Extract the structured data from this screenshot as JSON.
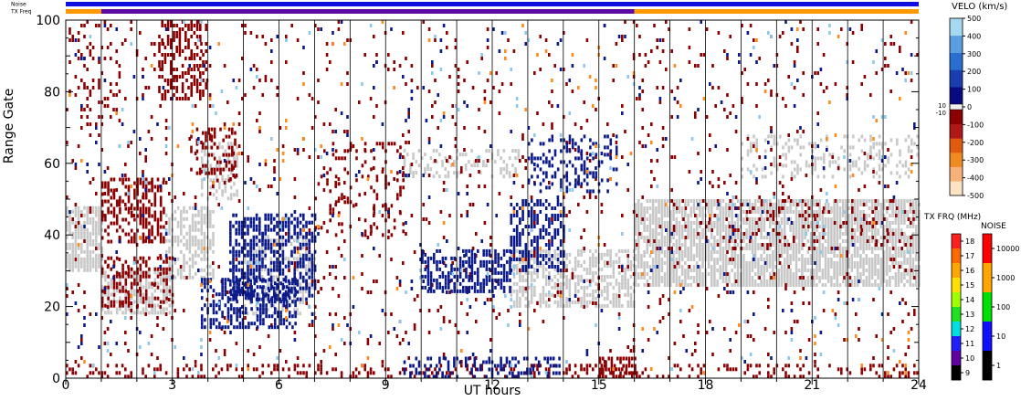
{
  "chart_data": {
    "type": "heatmap",
    "top_bars": [
      {
        "label": "Noise",
        "segments": [
          {
            "x0": 0,
            "x1": 24,
            "color": "#1010e0"
          }
        ]
      },
      {
        "label": "TX Freq",
        "segments": [
          {
            "x0": 0,
            "x1": 1,
            "color": "#ff9900"
          },
          {
            "x0": 1,
            "x1": 16,
            "color": "#5a0aa0"
          },
          {
            "x0": 16,
            "x1": 24,
            "color": "#ff9900"
          }
        ]
      }
    ],
    "xlabel": "UT hours",
    "ylabel": "Range Gate",
    "xlim": [
      0,
      24
    ],
    "ylim": [
      0,
      100
    ],
    "xticks": [
      0,
      3,
      6,
      9,
      12,
      15,
      18,
      21,
      24
    ],
    "yticks": [
      0,
      20,
      40,
      60,
      80,
      100
    ],
    "hour_gridlines": true,
    "regions": [
      {
        "name": "ground scatter",
        "color": "#c8c8c8",
        "blocks": [
          {
            "x0": 0.0,
            "x1": 1.0,
            "y0": 30,
            "y1": 48,
            "density": 0.75
          },
          {
            "x0": 1.0,
            "x1": 3.0,
            "y0": 18,
            "y1": 30,
            "density": 0.6
          },
          {
            "x0": 2.8,
            "x1": 4.2,
            "y0": 28,
            "y1": 48,
            "density": 0.55
          },
          {
            "x0": 3.8,
            "x1": 4.8,
            "y0": 50,
            "y1": 66,
            "density": 0.45
          },
          {
            "x0": 5.0,
            "x1": 7.0,
            "y0": 18,
            "y1": 40,
            "density": 0.35
          },
          {
            "x0": 9.5,
            "x1": 12.8,
            "y0": 56,
            "y1": 64,
            "density": 0.3
          },
          {
            "x0": 12.5,
            "x1": 16.0,
            "y0": 20,
            "y1": 36,
            "density": 0.6
          },
          {
            "x0": 16.0,
            "x1": 24.0,
            "y0": 26,
            "y1": 50,
            "density": 0.8
          },
          {
            "x0": 19.0,
            "x1": 24.0,
            "y0": 56,
            "y1": 68,
            "density": 0.25
          }
        ]
      },
      {
        "name": "negative velocity",
        "color": "#8b0000",
        "blocks": [
          {
            "x0": 0.0,
            "x1": 1.5,
            "y0": 70,
            "y1": 100,
            "density": 0.12
          },
          {
            "x0": 1.0,
            "x1": 2.8,
            "y0": 38,
            "y1": 56,
            "density": 0.45
          },
          {
            "x0": 1.0,
            "x1": 3.0,
            "y0": 20,
            "y1": 34,
            "density": 0.35
          },
          {
            "x0": 2.6,
            "x1": 4.0,
            "y0": 78,
            "y1": 100,
            "density": 0.45
          },
          {
            "x0": 3.5,
            "x1": 4.8,
            "y0": 55,
            "y1": 70,
            "density": 0.35
          },
          {
            "x0": 7.0,
            "x1": 9.5,
            "y0": 40,
            "y1": 66,
            "density": 0.15
          },
          {
            "x0": 0.0,
            "x1": 24.0,
            "y0": 0,
            "y1": 4,
            "density": 0.25
          },
          {
            "x0": 15.0,
            "x1": 16.0,
            "y0": 0,
            "y1": 6,
            "density": 0.6
          },
          {
            "x0": 17.0,
            "x1": 24.0,
            "y0": 36,
            "y1": 50,
            "density": 0.12
          },
          {
            "x0": 0.0,
            "x1": 24.0,
            "y0": 4,
            "y1": 100,
            "density": 0.035
          }
        ]
      },
      {
        "name": "positive velocity",
        "color": "#0a1a8a",
        "blocks": [
          {
            "x0": 4.6,
            "x1": 7.0,
            "y0": 22,
            "y1": 46,
            "density": 0.55
          },
          {
            "x0": 3.8,
            "x1": 6.5,
            "y0": 14,
            "y1": 28,
            "density": 0.5
          },
          {
            "x0": 10.0,
            "x1": 12.5,
            "y0": 24,
            "y1": 36,
            "density": 0.55
          },
          {
            "x0": 12.5,
            "x1": 14.0,
            "y0": 30,
            "y1": 50,
            "density": 0.45
          },
          {
            "x0": 13.0,
            "x1": 15.5,
            "y0": 52,
            "y1": 68,
            "density": 0.3
          },
          {
            "x0": 9.5,
            "x1": 14.0,
            "y0": 0,
            "y1": 6,
            "density": 0.35
          },
          {
            "x0": 0.0,
            "x1": 24.0,
            "y0": 4,
            "y1": 100,
            "density": 0.012
          }
        ]
      },
      {
        "name": "light blue",
        "color": "#8ac8f0",
        "blocks": [
          {
            "x0": 0.0,
            "x1": 24.0,
            "y0": 0,
            "y1": 100,
            "density": 0.006
          }
        ]
      },
      {
        "name": "orange",
        "color": "#ff8c1a",
        "blocks": [
          {
            "x0": 0.0,
            "x1": 24.0,
            "y0": 0,
            "y1": 100,
            "density": 0.005
          }
        ]
      }
    ],
    "velocity_colorbar": {
      "title": "VELO (km/s)",
      "min": -500,
      "max": 500,
      "colors": [
        "#fbe3c4",
        "#f6b27a",
        "#f08a22",
        "#e05a10",
        "#b01818",
        "#8b0000",
        "#f0f0f0",
        "#0a0a80",
        "#1a3eb0",
        "#2a6fd0",
        "#5a9ee0",
        "#a6d8f4"
      ],
      "ticks": [
        500,
        400,
        300,
        200,
        100,
        0,
        -100,
        -200,
        -300,
        -400,
        -500
      ],
      "gap_labels": [
        "10",
        "-10"
      ]
    },
    "txfreq_colorbar": {
      "title": "TX FRQ (MHz)",
      "levels": [
        18,
        17,
        16,
        15,
        14,
        13,
        12,
        11,
        10,
        9
      ],
      "colors": [
        "#ff2020",
        "#ff6a00",
        "#ffa500",
        "#ffe000",
        "#a0ff00",
        "#20e020",
        "#00e0e0",
        "#2020ff",
        "#6000a0",
        "#000000"
      ]
    },
    "noise_colorbar": {
      "title": "NOISE",
      "levels": [
        "10000",
        "1000",
        "100",
        "10",
        "1"
      ],
      "colors": [
        "#ff0000",
        "#ffa500",
        "#00e000",
        "#1010ff",
        "#000000"
      ]
    }
  }
}
